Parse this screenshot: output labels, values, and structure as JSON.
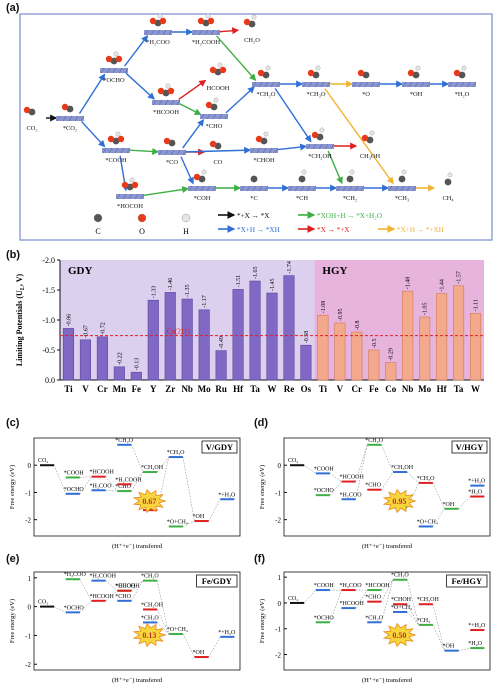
{
  "panel_labels": [
    "(a)",
    "(b)",
    "(c)",
    "(d)",
    "(e)",
    "(f)"
  ],
  "scheme": {
    "species": [
      {
        "id": "co2",
        "label": "CO₂"
      },
      {
        "id": "sco2",
        "label": "*CO₂"
      },
      {
        "id": "socho",
        "label": "*OCHO"
      },
      {
        "id": "sh2coo",
        "label": "*H₂COO"
      },
      {
        "id": "sh2cooh",
        "label": "*H₂COOH"
      },
      {
        "id": "ch2o",
        "label": "CH₂O"
      },
      {
        "id": "shcooh",
        "label": "*HCOOH"
      },
      {
        "id": "hcooh",
        "label": "HCOOH"
      },
      {
        "id": "scho",
        "label": "*CHO"
      },
      {
        "id": "sch2o",
        "label": "*CH₂O"
      },
      {
        "id": "sch3o",
        "label": "*CH₃O"
      },
      {
        "id": "so",
        "label": "*O"
      },
      {
        "id": "soh",
        "label": "*OH"
      },
      {
        "id": "sh2o",
        "label": "*H₂O"
      },
      {
        "id": "scooh",
        "label": "*COOH"
      },
      {
        "id": "sco",
        "label": "*CO"
      },
      {
        "id": "co",
        "label": "CO"
      },
      {
        "id": "schoh",
        "label": "*CHOH"
      },
      {
        "id": "sch2oh",
        "label": "*CH₂OH"
      },
      {
        "id": "ch3oh",
        "label": "CH₃OH"
      },
      {
        "id": "shocoh",
        "label": "*HOCOH"
      },
      {
        "id": "scoh",
        "label": "*COH"
      },
      {
        "id": "sc",
        "label": "*C"
      },
      {
        "id": "sch",
        "label": "*CH"
      },
      {
        "id": "sch2",
        "label": "*CH₂"
      },
      {
        "id": "sch3",
        "label": "*CH₃"
      },
      {
        "id": "ch4",
        "label": "CH₄"
      }
    ],
    "atom_legend": [
      {
        "name": "C",
        "color": "#555555"
      },
      {
        "name": "O",
        "color": "#e8391a"
      },
      {
        "name": "H",
        "color": "#e6e6e6"
      }
    ],
    "arrow_legend": [
      {
        "text": "*+X → *X",
        "color": "#111111"
      },
      {
        "text": "*XOH+H → *X+H₂O",
        "color": "#3cb043"
      },
      {
        "text": "*X+H → *XH",
        "color": "#2f6fd6"
      },
      {
        "text": "*X → *+X",
        "color": "#e02020"
      },
      {
        "text": "*X+H → *+XH",
        "color": "#f2b330"
      }
    ]
  },
  "chart_data": [
    {
      "type": "bar",
      "panel": "(b)",
      "ylabel": "Limiting Potentials (U",
      "ylabel_sub": "L",
      "ylabel_end": ", V)",
      "ylim": [
        0,
        -2.0
      ],
      "yticks": [
        0.0,
        -0.5,
        -1.0,
        -1.5,
        -2.0
      ],
      "ytick_labels": [
        "0.0",
        "-0.5",
        "-1.0",
        "-1.5",
        "-2.0"
      ],
      "reference_label": "Cu(211)",
      "reference_value": -0.74,
      "series": [
        {
          "name": "GDY",
          "color": "#8068c4",
          "categories": [
            "Ti",
            "V",
            "Cr",
            "Mn",
            "Fe",
            "Y",
            "Zr",
            "Nb",
            "Mo",
            "Ru",
            "Hf",
            "Ta",
            "W",
            "Re",
            "Os"
          ],
          "values": [
            -0.86,
            -0.67,
            -0.72,
            -0.22,
            -0.13,
            -1.33,
            -1.46,
            -1.35,
            -1.17,
            -0.49,
            -1.51,
            -1.65,
            -1.45,
            -1.74,
            -0.58
          ],
          "value_labels": [
            "-0.86",
            "-0.67",
            "-0.72",
            "-0.22",
            "-0.13",
            "-1.33",
            "-1.46",
            "-1.35",
            "-1.17",
            "-0.49",
            "-1.51",
            "-1.65",
            "-1.45",
            "-1.74",
            "-0.58"
          ]
        },
        {
          "name": "HGY",
          "color": "#f3a98c",
          "categories": [
            "Ti",
            "V",
            "Cr",
            "Fe",
            "Co",
            "Nb",
            "Mo",
            "Hf",
            "Ta",
            "W"
          ],
          "values": [
            -1.08,
            -0.95,
            -0.8,
            -0.5,
            -0.29,
            -1.48,
            -1.05,
            -1.44,
            -1.57,
            -1.11
          ],
          "value_labels": [
            "-1.08",
            "-0.95",
            "-0.8",
            "-0.5",
            "-0.29",
            "-1.48",
            "-1.05",
            "-1.44",
            "-1.57",
            "-1.11"
          ]
        }
      ]
    },
    {
      "type": "line",
      "panel": "(c)",
      "title": "V/GDY",
      "xlabel": "(H⁺+e⁻) transfered",
      "ylabel": "Free energy (eV)",
      "ylim": [
        -2.6,
        1.0
      ],
      "yticks": [
        0,
        -1,
        -2
      ],
      "highlight": "0.67",
      "steps": [
        {
          "step": 0,
          "label": "CO₂",
          "value": 0.0
        },
        {
          "step": 1,
          "label": "*OCHO",
          "value": -1.05
        },
        {
          "step": 1,
          "label": "*COOH",
          "value": -0.45
        },
        {
          "step": 2,
          "label": "*HCOOH",
          "value": -0.42
        },
        {
          "step": 2,
          "label": "*H₂COO",
          "value": -0.92
        },
        {
          "step": 3,
          "label": "*CHO",
          "value": -0.95
        },
        {
          "step": 3,
          "label": "*H₂COOH",
          "value": -0.7
        },
        {
          "step": 3,
          "label": "*CH₂O",
          "value": 0.75
        },
        {
          "step": 4,
          "label": "*CH₂OH",
          "value": -0.25
        },
        {
          "step": 4,
          "label": "*CH₂O",
          "value": -1.65
        },
        {
          "step": 5,
          "label": "*CH₃O",
          "value": 0.3
        },
        {
          "step": 5,
          "label": "*O+CH₄",
          "value": -2.25
        },
        {
          "step": 6,
          "label": "*OH",
          "value": -2.05
        },
        {
          "step": 7,
          "label": "*+H₂O",
          "value": -1.25
        }
      ]
    },
    {
      "type": "line",
      "panel": "(d)",
      "title": "V/HGY",
      "xlabel": "(H⁺+e⁻) transfered",
      "ylabel": "Free energy (eV)",
      "ylim": [
        -2.6,
        1.0
      ],
      "yticks": [
        0,
        -1,
        -2
      ],
      "highlight": "0.95",
      "steps": [
        {
          "step": 0,
          "label": "CO₂",
          "value": 0.0
        },
        {
          "step": 1,
          "label": "*COOH",
          "value": -0.3
        },
        {
          "step": 1,
          "label": "*OCHO",
          "value": -1.1
        },
        {
          "step": 2,
          "label": "*HCOOH",
          "value": -0.6
        },
        {
          "step": 2,
          "label": "*H₂COO",
          "value": -1.25
        },
        {
          "step": 3,
          "label": "*CH₂O",
          "value": 0.75
        },
        {
          "step": 3,
          "label": "*CHO",
          "value": -0.9
        },
        {
          "step": 4,
          "label": "*CH₃OH",
          "value": -0.25
        },
        {
          "step": 4,
          "label": "*CH₂O",
          "value": -1.55
        },
        {
          "step": 5,
          "label": "*CH₃O",
          "value": -0.65
        },
        {
          "step": 5,
          "label": "*O+CH₄",
          "value": -2.25
        },
        {
          "step": 6,
          "label": "*OH",
          "value": -1.6
        },
        {
          "step": 7,
          "label": "*H₂O",
          "value": -1.15
        },
        {
          "step": 7,
          "label": "*+H₂O",
          "value": -0.75
        }
      ]
    },
    {
      "type": "line",
      "panel": "(e)",
      "title": "Fe/GDY",
      "xlabel": "(H⁺+e⁻) transfered",
      "ylabel": "Free energy (eV)",
      "ylim": [
        -2.2,
        1.2
      ],
      "yticks": [
        1,
        0,
        -1,
        -2
      ],
      "highlight": "0.13",
      "steps": [
        {
          "step": 0,
          "label": "CO₂",
          "value": 0.0
        },
        {
          "step": 1,
          "label": "*OCHO",
          "value": -0.2
        },
        {
          "step": 1,
          "label": "*H₂COO",
          "value": 0.95
        },
        {
          "step": 2,
          "label": "*HCOOH",
          "value": 0.2
        },
        {
          "step": 2,
          "label": "*H₂COOH",
          "value": 0.9
        },
        {
          "step": 3,
          "label": "*HCOOH",
          "value": 0.55
        },
        {
          "step": 3,
          "label": "*CHOH",
          "value": 0.55
        },
        {
          "step": 3,
          "label": "*CHO",
          "value": 0.2
        },
        {
          "step": 4,
          "label": "*CH₂O",
          "value": 0.9
        },
        {
          "step": 4,
          "label": "*CH₂OH",
          "value": -0.1
        },
        {
          "step": 4,
          "label": "*CH₃O",
          "value": -0.55
        },
        {
          "step": 5,
          "label": "*O+CH₄",
          "value": -0.95
        },
        {
          "step": 6,
          "label": "*OH",
          "value": -1.75
        },
        {
          "step": 7,
          "label": "*+H₂O",
          "value": -1.05
        }
      ]
    },
    {
      "type": "line",
      "panel": "(f)",
      "title": "Fe/HGY",
      "xlabel": "(H⁺+e⁻) transfered",
      "ylabel": "Free energy (eV)",
      "ylim": [
        -2.6,
        1.2
      ],
      "yticks": [
        1,
        0,
        -1,
        -2
      ],
      "highlight": "0.50",
      "steps": [
        {
          "step": 0,
          "label": "CO₂",
          "value": 0.0
        },
        {
          "step": 1,
          "label": "*COOH",
          "value": 0.5
        },
        {
          "step": 1,
          "label": "*OCHO",
          "value": -0.75
        },
        {
          "step": 2,
          "label": "*H₂COO",
          "value": 0.5
        },
        {
          "step": 2,
          "label": "*HCOOH",
          "value": -0.2
        },
        {
          "step": 3,
          "label": "*HCOOH",
          "value": 0.5
        },
        {
          "step": 3,
          "label": "*CHO",
          "value": 0.05
        },
        {
          "step": 3,
          "label": "*CH₂O",
          "value": -0.75
        },
        {
          "step": 4,
          "label": "*CH₂O",
          "value": 0.9
        },
        {
          "step": 4,
          "label": "*CHOH",
          "value": -0.05
        },
        {
          "step": 4,
          "label": "*O+CH₃",
          "value": -0.35
        },
        {
          "step": 5,
          "label": "*CH₃",
          "value": -0.85
        },
        {
          "step": 5,
          "label": "*CH₂OH",
          "value": -0.05
        },
        {
          "step": 6,
          "label": "*OH",
          "value": -1.85
        },
        {
          "step": 7,
          "label": "*H₂O",
          "value": -1.75
        },
        {
          "step": 7,
          "label": "*+H₂O",
          "value": -1.05
        }
      ]
    }
  ]
}
